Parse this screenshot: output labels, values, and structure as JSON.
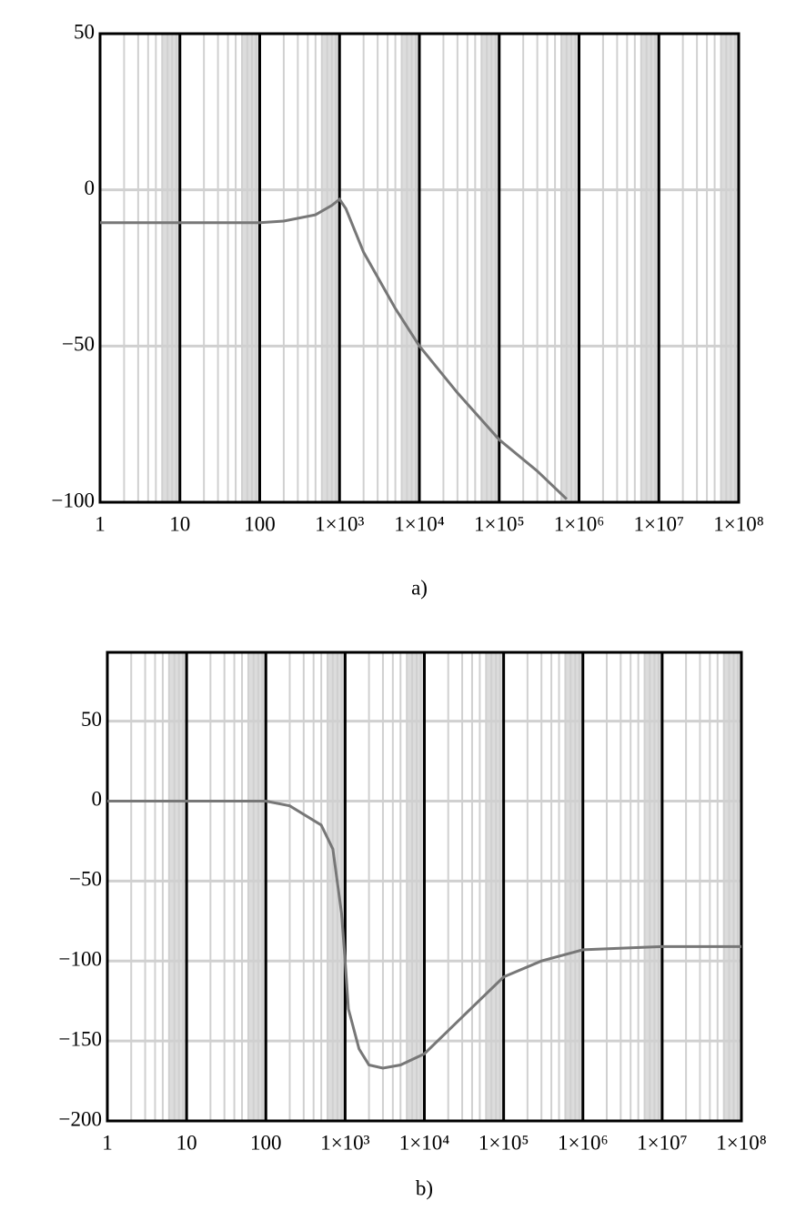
{
  "chart_data": [
    {
      "type": "line",
      "caption": "a)",
      "log_x": true,
      "grid": true,
      "color": "#777777",
      "x": [
        1,
        10,
        100,
        200,
        500,
        800,
        1000,
        1200,
        2000,
        5000,
        10000,
        30000,
        100000,
        300000,
        700000
      ],
      "values": [
        -10.5,
        -10.5,
        -10.5,
        -10,
        -8,
        -5,
        -3,
        -6,
        -20,
        -38,
        -50,
        -65,
        -80,
        -90,
        -99
      ],
      "xlim": [
        1,
        100000000
      ],
      "ylim": [
        -100,
        50
      ],
      "xticks": [
        1,
        10,
        100,
        {
          "value": 1000,
          "label": "1×10³"
        },
        {
          "value": 10000,
          "label": "1×10⁴"
        },
        {
          "value": 100000,
          "label": "1×10⁵"
        },
        {
          "value": 1000000,
          "label": "1×10⁶"
        },
        {
          "value": 10000000,
          "label": "1×10⁷"
        },
        {
          "value": 100000000,
          "label": "1×10⁸"
        }
      ],
      "yticks": [
        50,
        0,
        {
          "value": -50,
          "label": "−50"
        },
        {
          "value": -100,
          "label": "−100"
        }
      ]
    },
    {
      "type": "line",
      "caption": "b)",
      "log_x": true,
      "grid": true,
      "color": "#777777",
      "x": [
        1,
        10,
        100,
        200,
        500,
        700,
        900,
        1000,
        1100,
        1500,
        2000,
        3000,
        5000,
        10000,
        30000,
        100000,
        300000,
        1000000,
        10000000,
        100000000
      ],
      "values": [
        0,
        0,
        0,
        -3,
        -15,
        -30,
        -70,
        -100,
        -130,
        -155,
        -165,
        -167,
        -165,
        -158,
        -135,
        -110,
        -100,
        -93,
        -91,
        -91
      ],
      "xlim": [
        1,
        100000000
      ],
      "ylim": [
        -200,
        93
      ],
      "xticks": [
        1,
        10,
        100,
        {
          "value": 1000,
          "label": "1×10³"
        },
        {
          "value": 10000,
          "label": "1×10⁴"
        },
        {
          "value": 100000,
          "label": "1×10⁵"
        },
        {
          "value": 1000000,
          "label": "1×10⁶"
        },
        {
          "value": 10000000,
          "label": "1×10⁷"
        },
        {
          "value": 100000000,
          "label": "1×10⁸"
        }
      ],
      "yticks": [
        50,
        0,
        {
          "value": -50,
          "label": "−50"
        },
        {
          "value": -100,
          "label": "−100"
        },
        {
          "value": -150,
          "label": "−150"
        },
        {
          "value": -200,
          "label": "−200"
        }
      ]
    }
  ]
}
